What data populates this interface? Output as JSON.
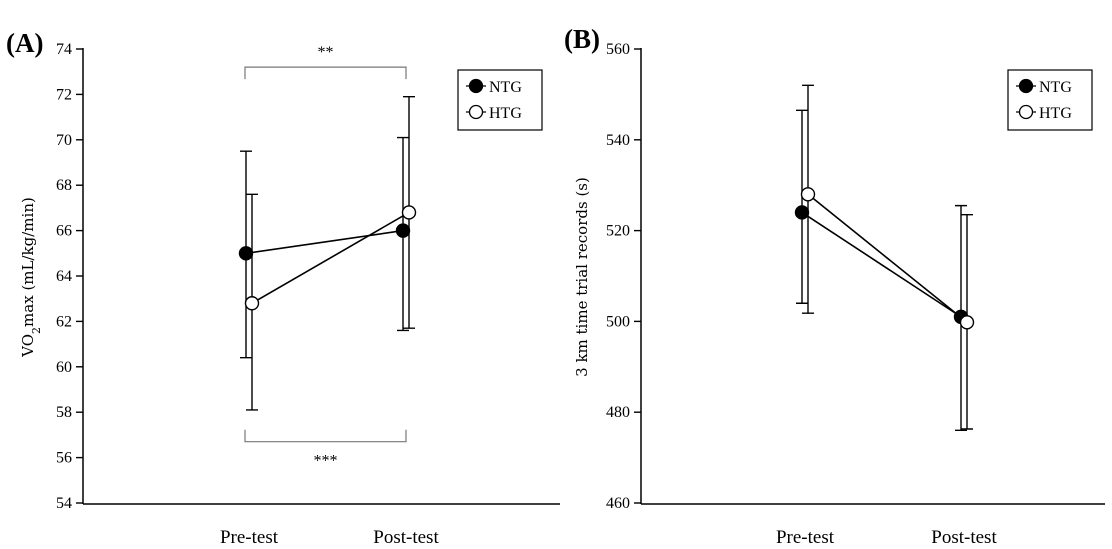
{
  "colors": {
    "ntg": "#000000",
    "htg": "#ffffff",
    "axis": "#000000"
  },
  "chart_data": [
    {
      "type": "line",
      "panel": "(A)",
      "ylabel_main": "VO",
      "ylabel_sub": "2",
      "ylabel_rest": "max (mL/kg/min)",
      "categories": [
        "Pre-test",
        "Post-test"
      ],
      "ylim": [
        54,
        74
      ],
      "yticks": [
        54,
        56,
        58,
        60,
        62,
        64,
        66,
        68,
        70,
        72,
        74
      ],
      "legend": {
        "placement": "top-right",
        "entries": [
          "NTG",
          "HTG"
        ]
      },
      "series": [
        {
          "name": "NTG",
          "marker": "filled-circle",
          "values": [
            65.0,
            66.0
          ],
          "err_low": [
            60.4,
            61.6
          ],
          "err_high": [
            69.5,
            70.1
          ]
        },
        {
          "name": "HTG",
          "marker": "open-circle",
          "values": [
            62.8,
            66.8
          ],
          "err_low": [
            58.1,
            61.7
          ],
          "err_high": [
            67.6,
            71.9
          ]
        }
      ],
      "annotations": [
        {
          "text": "**",
          "position": "top",
          "level": 73.2
        },
        {
          "text": "***",
          "position": "bottom",
          "level": 56.7
        }
      ]
    },
    {
      "type": "line",
      "panel": "(B)",
      "ylabel": "3 km time trial records (s)",
      "categories": [
        "Pre-test",
        "Post-test"
      ],
      "ylim": [
        460,
        560
      ],
      "yticks": [
        460,
        480,
        500,
        520,
        540,
        560
      ],
      "legend": {
        "placement": "top-right",
        "entries": [
          "NTG",
          "HTG"
        ]
      },
      "series": [
        {
          "name": "NTG",
          "marker": "filled-circle",
          "values": [
            524.0,
            501.0
          ],
          "err_low": [
            504.0,
            476.0
          ],
          "err_high": [
            546.5,
            525.5
          ]
        },
        {
          "name": "HTG",
          "marker": "open-circle",
          "values": [
            528.0,
            499.8
          ],
          "err_low": [
            501.8,
            476.3
          ],
          "err_high": [
            552.0,
            523.5
          ]
        }
      ]
    }
  ]
}
